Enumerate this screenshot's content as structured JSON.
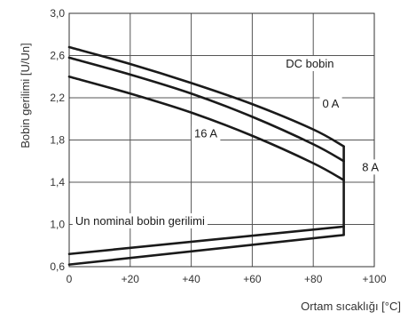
{
  "chart_data": {
    "type": "line",
    "xlabel": "Ortam sıcaklığı [°C]",
    "ylabel": "Bobin gerilimi [U/Un]",
    "xlim": [
      0,
      100
    ],
    "ylim": [
      0.6,
      3.0
    ],
    "x_ticks": [
      {
        "value": 0,
        "label": "0"
      },
      {
        "value": 20,
        "label": "+20"
      },
      {
        "value": 40,
        "label": "+40"
      },
      {
        "value": 60,
        "label": "+60"
      },
      {
        "value": 80,
        "label": "+80"
      },
      {
        "value": 100,
        "label": "+100"
      }
    ],
    "y_ticks": [
      {
        "value": 0.6,
        "label": "0,6"
      },
      {
        "value": 1.0,
        "label": "1,0"
      },
      {
        "value": 1.4,
        "label": "1,4"
      },
      {
        "value": 1.8,
        "label": "1,8"
      },
      {
        "value": 2.2,
        "label": "2,2"
      },
      {
        "value": 2.6,
        "label": "2,6"
      },
      {
        "value": 3.0,
        "label": "3,0"
      }
    ],
    "grid": true,
    "series": [
      {
        "name": "0 A",
        "x": [
          0,
          20,
          40,
          60,
          80,
          90
        ],
        "y": [
          2.68,
          2.52,
          2.34,
          2.14,
          1.9,
          1.74
        ]
      },
      {
        "name": "8 A",
        "x": [
          0,
          20,
          40,
          60,
          80,
          90
        ],
        "y": [
          2.58,
          2.42,
          2.24,
          2.02,
          1.76,
          1.6
        ]
      },
      {
        "name": "16 A",
        "x": [
          0,
          20,
          40,
          60,
          80,
          90
        ],
        "y": [
          2.4,
          2.24,
          2.06,
          1.84,
          1.58,
          1.42
        ]
      },
      {
        "name": "",
        "x": [
          0,
          90
        ],
        "y": [
          0.72,
          0.98
        ]
      },
      {
        "name": "",
        "x": [
          0,
          90
        ],
        "y": [
          0.62,
          0.9
        ]
      }
    ],
    "annotations": [
      {
        "text": "DC bobin",
        "x": 71,
        "y": 2.52
      },
      {
        "text": "0 A",
        "x": 83,
        "y": 2.14
      },
      {
        "text": "8 A",
        "x": 96,
        "y": 1.54
      },
      {
        "text": "16 A",
        "x": 41,
        "y": 1.86
      },
      {
        "text": "Un nominal bobin gerilimi",
        "x": 2,
        "y": 1.03
      }
    ]
  }
}
